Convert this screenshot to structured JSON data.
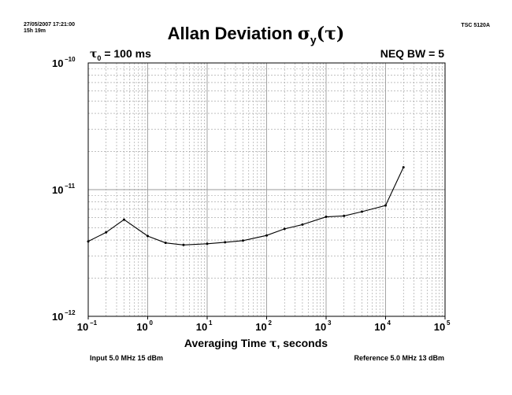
{
  "header": {
    "timestamp": "27/05/2007 17:21:00",
    "duration": "15h 19m",
    "instrument": "TSC 5120A"
  },
  "chart": {
    "title_main": "Allan Deviation ",
    "title_sigma": "σ",
    "title_sub": "y",
    "title_tail": "(τ)",
    "tau0_symbol": "τ",
    "tau0_sub": "0",
    "tau0_value": " = 100 ms",
    "neq_bw": "NEQ BW = 5",
    "xlabel_main": "Averaging Time ",
    "xlabel_tau": "τ",
    "xlabel_tail": ", seconds",
    "input_info": "Input 5.0 MHz 15 dBm",
    "reference_info": "Reference 5.0 MHz 13 dBm"
  },
  "chart_data": {
    "type": "line",
    "title": "Allan Deviation σy(τ)",
    "xlabel": "Averaging Time τ, seconds",
    "ylabel": "",
    "x_scale": "log",
    "y_scale": "log",
    "xlim": [
      0.1,
      100000
    ],
    "ylim": [
      1e-12,
      1e-10
    ],
    "grid": true,
    "x_ticks": [
      {
        "value": 0.1,
        "base": "10",
        "exp": "−1"
      },
      {
        "value": 1,
        "base": "10",
        "exp": "0"
      },
      {
        "value": 10,
        "base": "10",
        "exp": "1"
      },
      {
        "value": 100,
        "base": "10",
        "exp": "2"
      },
      {
        "value": 1000,
        "base": "10",
        "exp": "3"
      },
      {
        "value": 10000,
        "base": "10",
        "exp": "4"
      },
      {
        "value": 100000,
        "base": "10",
        "exp": "5"
      }
    ],
    "y_ticks": [
      {
        "value": 1e-10,
        "base": "10",
        "exp": "−10"
      },
      {
        "value": 1e-11,
        "base": "10",
        "exp": "−11"
      },
      {
        "value": 1e-12,
        "base": "10",
        "exp": "−12"
      }
    ],
    "series": [
      {
        "x": [
          0.1,
          0.2,
          0.4,
          1,
          2,
          4,
          10,
          20,
          40,
          100,
          200,
          400,
          1000,
          2000,
          4000,
          10000,
          20000
        ],
        "y": [
          3.9e-12,
          4.6e-12,
          5.8e-12,
          4.3e-12,
          3.8e-12,
          3.66e-12,
          3.74e-12,
          3.84e-12,
          3.96e-12,
          4.35e-12,
          4.9e-12,
          5.3e-12,
          6.1e-12,
          6.2e-12,
          6.7e-12,
          7.5e-12,
          1.5e-11
        ]
      }
    ],
    "colors": {
      "line": "#000000",
      "grid": "#9a9a9a",
      "axis": "#000000"
    }
  }
}
